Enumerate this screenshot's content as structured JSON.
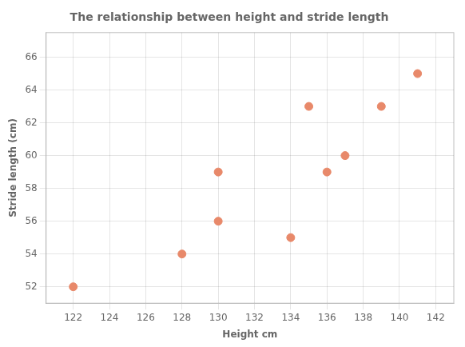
{
  "chart_data": {
    "type": "scatter",
    "title": "The relationship between height and stride length",
    "xlabel": "Height cm",
    "ylabel": "Stride length (cm)",
    "x": [
      122,
      128,
      130,
      130,
      134,
      135,
      136,
      137,
      139,
      141
    ],
    "values": [
      52,
      54,
      59,
      56,
      55,
      63,
      59,
      60,
      63,
      65
    ],
    "color": "#E8896A",
    "xlim": [
      120.5,
      143
    ],
    "ylim": [
      51,
      67.5
    ],
    "xticks": [
      122,
      124,
      126,
      128,
      130,
      132,
      134,
      136,
      138,
      140,
      142
    ],
    "yticks": [
      52,
      54,
      56,
      58,
      60,
      62,
      64,
      66
    ],
    "grid": true
  }
}
